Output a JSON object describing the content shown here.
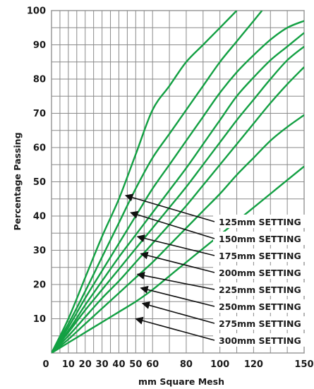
{
  "chart_data": {
    "type": "line",
    "title": "",
    "xlabel": "mm Square Mesh",
    "ylabel": "Percentage Passing",
    "xlim": [
      0,
      150
    ],
    "ylim": [
      0,
      100
    ],
    "x_ticks": [
      0,
      10,
      20,
      30,
      40,
      50,
      60,
      80,
      100,
      120,
      150
    ],
    "y_ticks": [
      10,
      20,
      30,
      40,
      50,
      60,
      70,
      80,
      90,
      100
    ],
    "grid_x": [
      0,
      5,
      10,
      15,
      20,
      25,
      30,
      35,
      40,
      45,
      50,
      55,
      60,
      70,
      80,
      90,
      100,
      110,
      120,
      130,
      140,
      150
    ],
    "grid": true,
    "line_color": "#13a043",
    "series": [
      {
        "name": "125mm SETTING",
        "arrow_tip": [
          44,
          46
        ],
        "points": [
          [
            0,
            0
          ],
          [
            10,
            10
          ],
          [
            20,
            22
          ],
          [
            30,
            34
          ],
          [
            40,
            45
          ],
          [
            50,
            58
          ],
          [
            60,
            71
          ],
          [
            70,
            78
          ],
          [
            80,
            85
          ],
          [
            90,
            90
          ],
          [
            100,
            95
          ],
          [
            110,
            100
          ]
        ]
      },
      {
        "name": "150mm SETTING",
        "arrow_tip": [
          47,
          41
        ],
        "points": [
          [
            0,
            0
          ],
          [
            10,
            8.5
          ],
          [
            20,
            18
          ],
          [
            30,
            28
          ],
          [
            40,
            38
          ],
          [
            50,
            48
          ],
          [
            60,
            57
          ],
          [
            70,
            64
          ],
          [
            80,
            71
          ],
          [
            90,
            78
          ],
          [
            100,
            85
          ],
          [
            110,
            91
          ],
          [
            120,
            97
          ],
          [
            125,
            100
          ]
        ]
      },
      {
        "name": "175mm SETTING",
        "arrow_tip": [
          51,
          34
        ],
        "points": [
          [
            0,
            0
          ],
          [
            10,
            7.5
          ],
          [
            20,
            16
          ],
          [
            30,
            24
          ],
          [
            40,
            32
          ],
          [
            50,
            40
          ],
          [
            60,
            48
          ],
          [
            70,
            55
          ],
          [
            80,
            62
          ],
          [
            90,
            69
          ],
          [
            100,
            76
          ],
          [
            110,
            82
          ],
          [
            120,
            87
          ],
          [
            130,
            91.5
          ],
          [
            140,
            95
          ],
          [
            150,
            97
          ]
        ]
      },
      {
        "name": "200mm SETTING",
        "arrow_tip": [
          53,
          29
        ],
        "points": [
          [
            0,
            0
          ],
          [
            10,
            6.5
          ],
          [
            20,
            14
          ],
          [
            30,
            21
          ],
          [
            40,
            28
          ],
          [
            50,
            34.5
          ],
          [
            60,
            41
          ],
          [
            70,
            47.5
          ],
          [
            80,
            54
          ],
          [
            90,
            61
          ],
          [
            100,
            68
          ],
          [
            110,
            75
          ],
          [
            120,
            80.5
          ],
          [
            130,
            85.5
          ],
          [
            140,
            89.5
          ],
          [
            150,
            93.5
          ]
        ]
      },
      {
        "name": "225mm SETTING",
        "arrow_tip": [
          51,
          23
        ],
        "points": [
          [
            0,
            0
          ],
          [
            10,
            6
          ],
          [
            20,
            12.5
          ],
          [
            30,
            18.5
          ],
          [
            40,
            24.5
          ],
          [
            50,
            30.5
          ],
          [
            60,
            36.5
          ],
          [
            70,
            42.5
          ],
          [
            80,
            48.5
          ],
          [
            90,
            55
          ],
          [
            100,
            61.5
          ],
          [
            110,
            68
          ],
          [
            120,
            74
          ],
          [
            130,
            80
          ],
          [
            140,
            85.5
          ],
          [
            150,
            89.5
          ]
        ]
      },
      {
        "name": "250mm SETTING",
        "arrow_tip": [
          53,
          19
        ],
        "points": [
          [
            0,
            0
          ],
          [
            10,
            5
          ],
          [
            20,
            10.5
          ],
          [
            30,
            16
          ],
          [
            40,
            21
          ],
          [
            50,
            26.5
          ],
          [
            60,
            32
          ],
          [
            70,
            37.5
          ],
          [
            80,
            43
          ],
          [
            90,
            49
          ],
          [
            100,
            55
          ],
          [
            110,
            61
          ],
          [
            120,
            67
          ],
          [
            130,
            73
          ],
          [
            140,
            78.5
          ],
          [
            150,
            83.5
          ]
        ]
      },
      {
        "name": "275mm SETTING",
        "arrow_tip": [
          54,
          14.5
        ],
        "points": [
          [
            0,
            0
          ],
          [
            10,
            4
          ],
          [
            20,
            8.5
          ],
          [
            30,
            13
          ],
          [
            40,
            17.5
          ],
          [
            50,
            22
          ],
          [
            60,
            26.5
          ],
          [
            70,
            31.5
          ],
          [
            80,
            36.5
          ],
          [
            90,
            41.5
          ],
          [
            100,
            46.5
          ],
          [
            110,
            52
          ],
          [
            120,
            57
          ],
          [
            130,
            62
          ],
          [
            140,
            66
          ],
          [
            150,
            69.5
          ]
        ]
      },
      {
        "name": "300mm SETTING",
        "arrow_tip": [
          50,
          10
        ],
        "points": [
          [
            0,
            0
          ],
          [
            10,
            3
          ],
          [
            20,
            6
          ],
          [
            30,
            9
          ],
          [
            40,
            12
          ],
          [
            50,
            15
          ],
          [
            60,
            18.5
          ],
          [
            70,
            22.5
          ],
          [
            80,
            26.5
          ],
          [
            90,
            30.5
          ],
          [
            100,
            34.5
          ],
          [
            110,
            38.5
          ],
          [
            120,
            42.5
          ],
          [
            130,
            46.5
          ],
          [
            140,
            50.5
          ],
          [
            150,
            54.5
          ]
        ]
      }
    ]
  }
}
